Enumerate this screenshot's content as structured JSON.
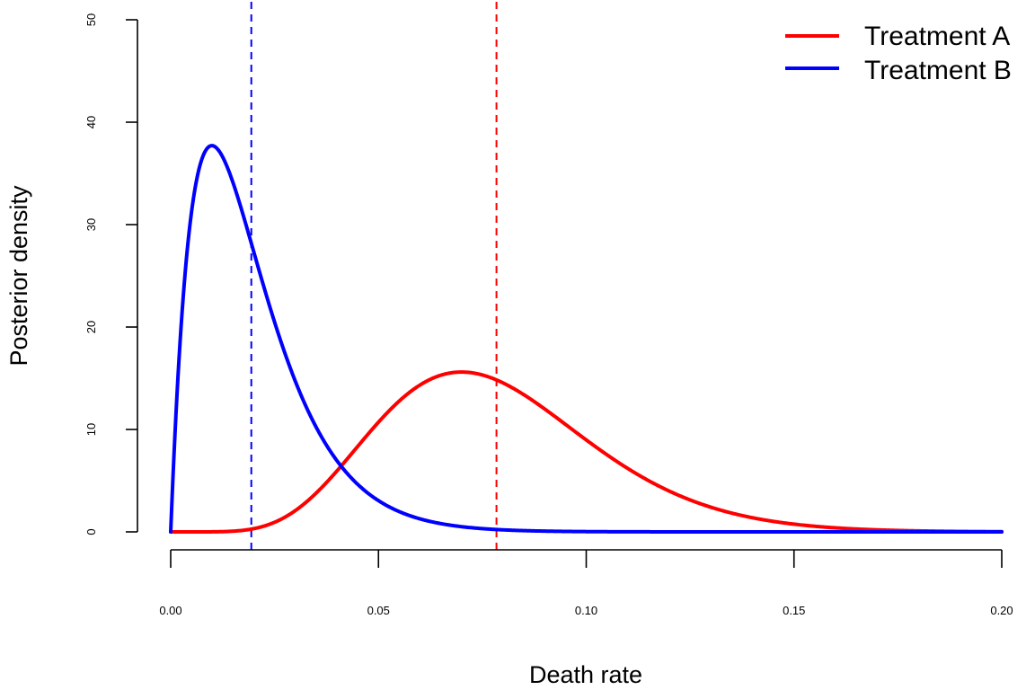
{
  "chart_data": {
    "type": "line",
    "title": "",
    "xlabel": "Death rate",
    "ylabel": "Posterior density",
    "xlim": [
      0,
      0.2
    ],
    "ylim": [
      0,
      50
    ],
    "x_ticks": [
      0,
      0.05,
      0.1,
      0.15,
      0.2
    ],
    "x_tick_labels": [
      "0.00",
      "0.05",
      "0.10",
      "0.15",
      "0.20"
    ],
    "y_ticks": [
      0,
      10,
      20,
      30,
      40,
      50
    ],
    "y_tick_labels": [
      "0",
      "10",
      "20",
      "30",
      "40",
      "50"
    ],
    "grid": false,
    "legend_position": "top-right",
    "series": [
      {
        "name": "Treatment A",
        "color": "#ff0000",
        "distribution": "beta",
        "alpha": 8,
        "beta": 94,
        "x": [
          0,
          0.02,
          0.03,
          0.04,
          0.05,
          0.06,
          0.07,
          0.078,
          0.09,
          0.1,
          0.12,
          0.15,
          0.2
        ],
        "y": [
          0,
          0.4,
          2.5,
          6.7,
          11.1,
          14.5,
          15.6,
          15.2,
          12.2,
          9.0,
          3.7,
          0.7,
          0.0
        ],
        "mean": 0.0784
      },
      {
        "name": "Treatment B",
        "color": "#0000ff",
        "distribution": "beta",
        "alpha": 2,
        "beta": 101,
        "x": [
          0,
          0.005,
          0.01,
          0.02,
          0.03,
          0.04,
          0.05,
          0.06,
          0.08,
          0.1,
          0.2
        ],
        "y": [
          0,
          31.4,
          37.4,
          27.7,
          15.3,
          7.6,
          3.5,
          1.5,
          0.3,
          0.05,
          0.0
        ],
        "mean": 0.0194
      }
    ],
    "reference_lines": [
      {
        "axis": "x",
        "value": 0.0784,
        "style": "dashed",
        "color": "#ff0000",
        "label": "Treatment A mean"
      },
      {
        "axis": "x",
        "value": 0.0194,
        "style": "dashed",
        "color": "#0000ff",
        "label": "Treatment B mean"
      }
    ]
  }
}
